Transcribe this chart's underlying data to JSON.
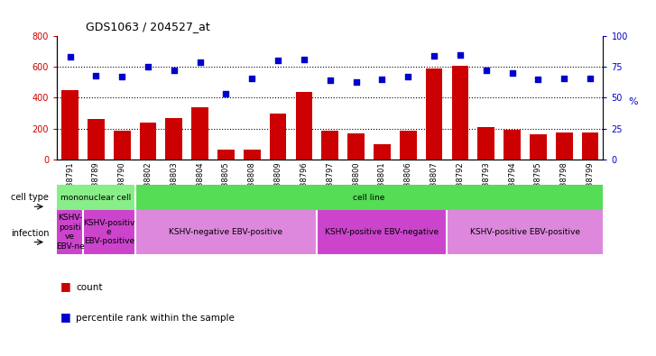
{
  "title": "GDS1063 / 204527_at",
  "samples": [
    "GSM38791",
    "GSM38789",
    "GSM38790",
    "GSM38802",
    "GSM38803",
    "GSM38804",
    "GSM38805",
    "GSM38808",
    "GSM38809",
    "GSM38796",
    "GSM38797",
    "GSM38800",
    "GSM38801",
    "GSM38806",
    "GSM38807",
    "GSM38792",
    "GSM38793",
    "GSM38794",
    "GSM38795",
    "GSM38798",
    "GSM38799"
  ],
  "counts": [
    450,
    260,
    185,
    240,
    270,
    340,
    65,
    65,
    295,
    440,
    185,
    170,
    100,
    185,
    590,
    610,
    210,
    195,
    160,
    175,
    175
  ],
  "percentile": [
    83,
    68,
    67,
    75,
    72,
    79,
    53,
    66,
    80,
    81,
    64,
    63,
    65,
    67,
    84,
    85,
    72,
    70,
    65,
    66,
    66
  ],
  "ylim_left": [
    0,
    800
  ],
  "ylim_right": [
    0,
    100
  ],
  "yticks_left": [
    0,
    200,
    400,
    600,
    800
  ],
  "yticks_right": [
    0,
    25,
    50,
    75,
    100
  ],
  "bar_color": "#cc0000",
  "dot_color": "#0000cc",
  "cell_type_row": [
    {
      "label": "mononuclear cell",
      "start": 0,
      "end": 3,
      "color": "#88ee88"
    },
    {
      "label": "cell line",
      "start": 3,
      "end": 21,
      "color": "#55dd55"
    }
  ],
  "infection_row": [
    {
      "label": "KSHV-\npositi\nve\nEBV-ne",
      "start": 0,
      "end": 1,
      "color": "#cc44cc"
    },
    {
      "label": "KSHV-positiv\ne\nEBV-positive",
      "start": 1,
      "end": 3,
      "color": "#cc44cc"
    },
    {
      "label": "KSHV-negative EBV-positive",
      "start": 3,
      "end": 10,
      "color": "#dd88dd"
    },
    {
      "label": "KSHV-positive EBV-negative",
      "start": 10,
      "end": 15,
      "color": "#cc44cc"
    },
    {
      "label": "KSHV-positive EBV-positive",
      "start": 15,
      "end": 21,
      "color": "#dd88dd"
    }
  ],
  "annotation_cell_type": "cell type",
  "annotation_infection": "infection",
  "legend_count": "count",
  "legend_percentile": "percentile rank within the sample",
  "right_ylabel": "%",
  "bg_color": "#f0f0f0"
}
